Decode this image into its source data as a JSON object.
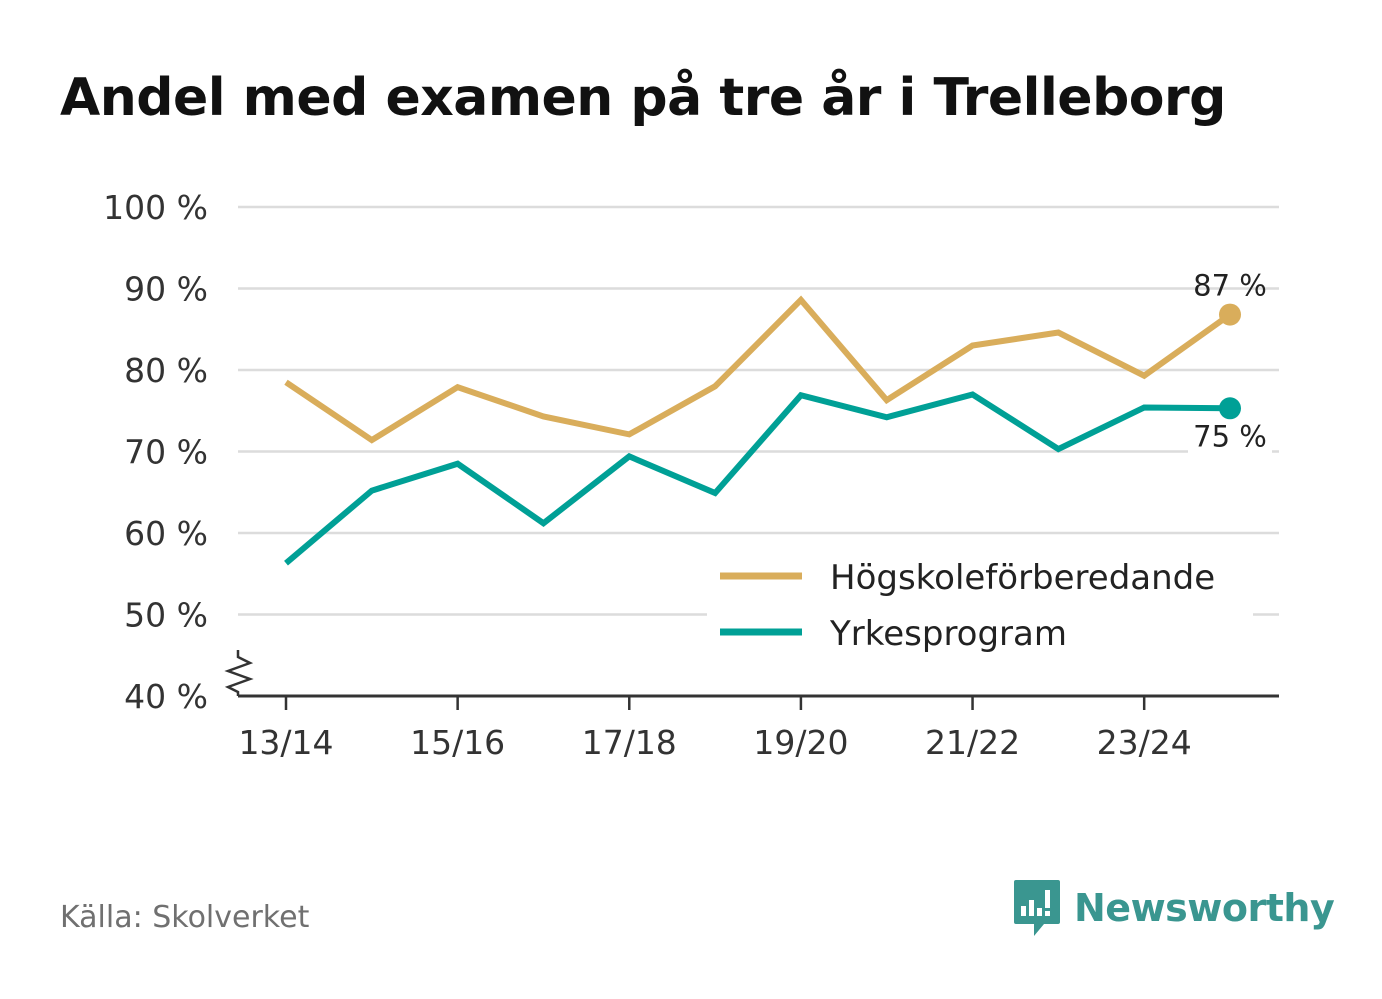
{
  "title": "Andel med examen på tre år i Trelleborg",
  "source": "Källa: Skolverket",
  "brand": {
    "name": "Newsworthy",
    "icon": "newsworthy-logo-icon",
    "color": "#3a9690"
  },
  "chart_data": {
    "type": "line",
    "title": "Andel med examen på tre år i Trelleborg",
    "x": [
      "13/14",
      "14/15",
      "15/16",
      "16/17",
      "17/18",
      "18/19",
      "19/20",
      "20/21",
      "21/22",
      "22/23",
      "23/24",
      "24/25"
    ],
    "x_tick_labels": [
      "13/14",
      "15/16",
      "17/18",
      "19/20",
      "21/22",
      "23/24"
    ],
    "y_tick_values": [
      40,
      50,
      60,
      70,
      80,
      90,
      100
    ],
    "y_tick_labels": [
      "40 %",
      "50 %",
      "60 %",
      "70 %",
      "80 %",
      "90 %",
      "100 %"
    ],
    "ylim": [
      40,
      100
    ],
    "y_axis_break": true,
    "grid": true,
    "xlabel": "",
    "ylabel": "",
    "legend_position": "bottom-right",
    "series": [
      {
        "name": "Högskoleförberedande",
        "color": "#d9ad5b",
        "values": [
          78.5,
          71.4,
          77.9,
          74.3,
          72.1,
          78.0,
          88.6,
          76.3,
          83.0,
          84.6,
          79.3,
          86.8
        ],
        "end_label": "87 %"
      },
      {
        "name": "Yrkesprogram",
        "color": "#00a096",
        "values": [
          56.3,
          65.2,
          68.5,
          61.2,
          69.4,
          64.9,
          76.9,
          74.2,
          77.0,
          70.3,
          75.4,
          75.3
        ],
        "end_label": "75 %"
      }
    ]
  }
}
